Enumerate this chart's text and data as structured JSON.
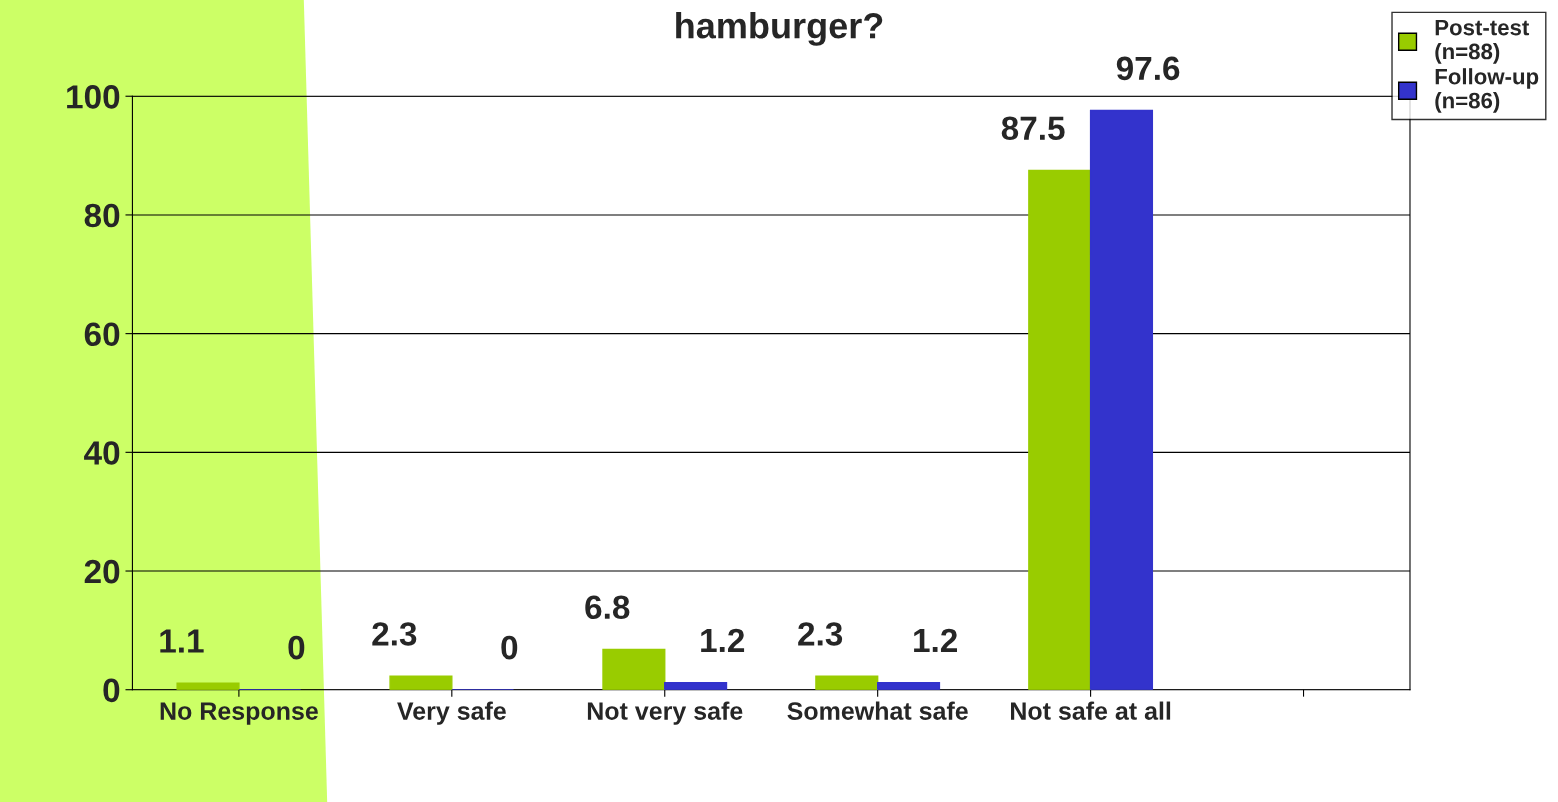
{
  "chart_data": {
    "type": "bar",
    "title": "hamburger?",
    "categories": [
      "No Response",
      "Very safe",
      "Not very safe",
      "Somewhat safe",
      "Not safe at all",
      null
    ],
    "series": [
      {
        "name": "Post-test (n=88)",
        "color": "#99cc00",
        "values": [
          1.1,
          2.3,
          6.8,
          2.3,
          87.5,
          null
        ]
      },
      {
        "name": "Follow-up (n=86)",
        "color": "#3333cc",
        "values": [
          0,
          0,
          1.2,
          1.2,
          97.6,
          null
        ]
      }
    ],
    "ylim": [
      0,
      100
    ],
    "yticks": [
      0,
      20,
      40,
      60,
      80,
      100
    ],
    "grid": "y",
    "legend": "top right",
    "data_labels": true
  }
}
